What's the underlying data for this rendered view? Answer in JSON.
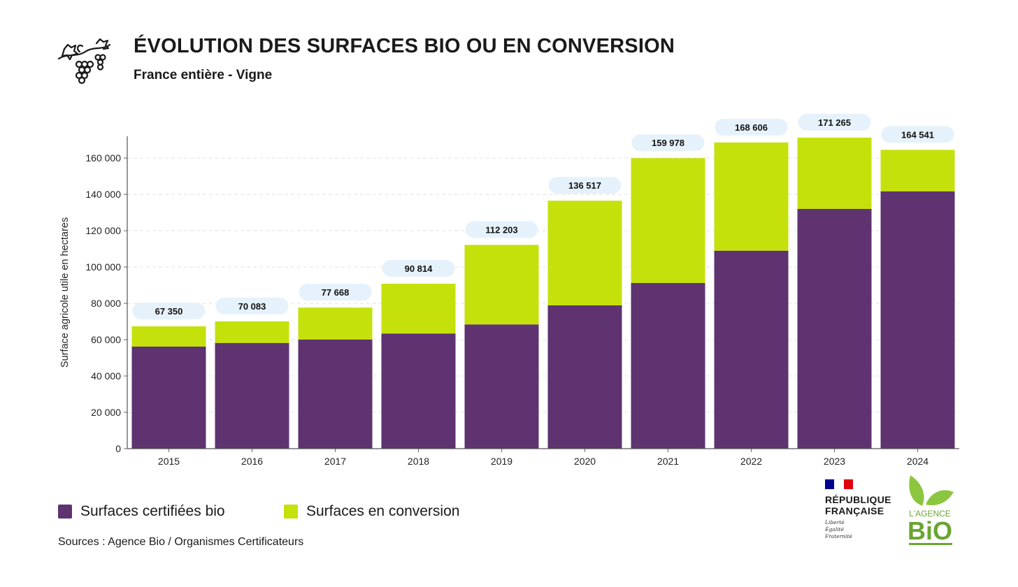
{
  "title": "ÉVOLUTION DES SURFACES BIO OU EN CONVERSION",
  "subtitle": "France entière - Vigne",
  "legend": {
    "bio_label": "Surfaces certifiées bio",
    "conversion_label": "Surfaces en conversion"
  },
  "sources": "Sources : Agence Bio / Organismes Certificateurs",
  "logos": {
    "rf_name_line1": "RÉPUBLIQUE",
    "rf_name_line2": "FRANÇAISE",
    "rf_motto_1": "Liberté",
    "rf_motto_2": "Égalité",
    "rf_motto_3": "Fraternité",
    "bio_logo_top": "L'AGENCE",
    "bio_logo_main": "BiO"
  },
  "colors": {
    "bio": "#5e3370",
    "conversion": "#c5e10c",
    "label_bg": "#e6f2fb",
    "gridline": "#e2e2e2",
    "rf_blue": "#000091",
    "rf_red": "#e1000f",
    "agence_green": "#8cc63f"
  },
  "chart_data": {
    "type": "bar",
    "stacked": true,
    "categories": [
      "2015",
      "2016",
      "2017",
      "2018",
      "2019",
      "2020",
      "2021",
      "2022",
      "2023",
      "2024"
    ],
    "series": [
      {
        "name": "Surfaces certifiées bio",
        "values": [
          56200,
          58200,
          60100,
          63400,
          68400,
          78900,
          91200,
          109000,
          132000,
          141700
        ]
      },
      {
        "name": "Surfaces en conversion",
        "values": [
          11150,
          11883,
          17568,
          27414,
          43803,
          57617,
          68778,
          59606,
          39265,
          22841
        ]
      }
    ],
    "totals": [
      67350,
      70083,
      77668,
      90814,
      112203,
      136517,
      159978,
      168606,
      171265,
      164541
    ],
    "total_labels": [
      "67 350",
      "70 083",
      "77 668",
      "90 814",
      "112 203",
      "136 517",
      "159 978",
      "168 606",
      "171 265",
      "164 541"
    ],
    "ylabel": "Surface agricole utile en hectares",
    "xlabel": "",
    "ylim": [
      0,
      172000
    ],
    "yticks": [
      0,
      20000,
      40000,
      60000,
      80000,
      100000,
      120000,
      140000,
      160000
    ],
    "ytick_labels": [
      "0",
      "20 000",
      "40 000",
      "60 000",
      "80 000",
      "100 000",
      "120 000",
      "140 000",
      "160 000"
    ],
    "grid": true,
    "legend_position": "bottom-left"
  }
}
